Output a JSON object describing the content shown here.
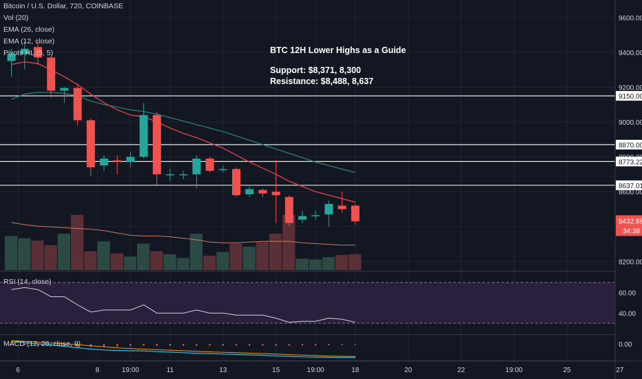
{
  "legend": {
    "symbol": "Bitcoin / U.S. Dollar, 720, COINBASE",
    "vol": "Vol (20)",
    "ema26": "EMA (26, close)",
    "ema12": "EMA (12, close)",
    "pivots": "Pivots HL (5, 5)",
    "rsi": "RSI (14, close)",
    "macd": "MACD (12, 26, close, 9)"
  },
  "annotation": {
    "title": "BTC 12H Lower Highs as a Guide",
    "support": "Support: $8,371, 8,300",
    "resistance": "Resistance: $8,488, 8,637"
  },
  "colors": {
    "bg": "#131722",
    "up": "#26a69a",
    "down": "#ef5350",
    "ema_fast": "#e0474c",
    "ema_slow": "#2e7d74",
    "rsi_fill": "#2a1f3d",
    "rsi_line": "#d1d4dc",
    "level_line": "#e6e6e6",
    "macd_line": "#26c6da",
    "signal_line": "#ff9800"
  },
  "chart_data": {
    "type": "candlestick",
    "price_axis": {
      "range": [
        8150,
        9700
      ],
      "ticks": [
        "9600.00",
        "9400.00",
        "9200.00",
        "9000.00",
        "8800.00",
        "8600.00",
        "8400.00",
        "8200.00"
      ],
      "tick_values": [
        9600,
        9400,
        9200,
        9000,
        8800,
        8600,
        8400,
        8200
      ]
    },
    "time_axis": {
      "labels": [
        "6",
        "8",
        "19:00",
        "11",
        "13",
        "15",
        "19:00",
        "18",
        "20",
        "22",
        "19:00",
        "25",
        "27"
      ],
      "label_index": [
        0.5,
        6.5,
        9,
        12,
        16,
        20,
        23,
        26,
        30,
        34,
        38,
        42,
        46
      ]
    },
    "candles": [
      {
        "o": 9350,
        "h": 9420,
        "l": 9260,
        "c": 9390
      },
      {
        "o": 9390,
        "h": 9460,
        "l": 9300,
        "c": 9420
      },
      {
        "o": 9430,
        "h": 9470,
        "l": 9330,
        "c": 9370
      },
      {
        "o": 9370,
        "h": 9380,
        "l": 9140,
        "c": 9180
      },
      {
        "o": 9180,
        "h": 9200,
        "l": 9110,
        "c": 9195
      },
      {
        "o": 9195,
        "h": 9210,
        "l": 8980,
        "c": 9010
      },
      {
        "o": 9010,
        "h": 9020,
        "l": 8690,
        "c": 8740
      },
      {
        "o": 8750,
        "h": 8810,
        "l": 8720,
        "c": 8790
      },
      {
        "o": 8780,
        "h": 8810,
        "l": 8700,
        "c": 8770
      },
      {
        "o": 8770,
        "h": 8830,
        "l": 8740,
        "c": 8800
      },
      {
        "o": 8800,
        "h": 9110,
        "l": 8790,
        "c": 9040
      },
      {
        "o": 9040,
        "h": 9060,
        "l": 8640,
        "c": 8700
      },
      {
        "o": 8700,
        "h": 8730,
        "l": 8660,
        "c": 8700
      },
      {
        "o": 8700,
        "h": 8720,
        "l": 8670,
        "c": 8700
      },
      {
        "o": 8700,
        "h": 8810,
        "l": 8620,
        "c": 8790
      },
      {
        "o": 8790,
        "h": 8800,
        "l": 8710,
        "c": 8720
      },
      {
        "o": 8730,
        "h": 8750,
        "l": 8710,
        "c": 8730
      },
      {
        "o": 8730,
        "h": 8740,
        "l": 8570,
        "c": 8580
      },
      {
        "o": 8585,
        "h": 8630,
        "l": 8570,
        "c": 8615
      },
      {
        "o": 8610,
        "h": 8620,
        "l": 8570,
        "c": 8590
      },
      {
        "o": 8600,
        "h": 8780,
        "l": 8420,
        "c": 8580
      },
      {
        "o": 8570,
        "h": 8580,
        "l": 8400,
        "c": 8420
      },
      {
        "o": 8440,
        "h": 8490,
        "l": 8420,
        "c": 8460
      },
      {
        "o": 8460,
        "h": 8490,
        "l": 8440,
        "c": 8465
      },
      {
        "o": 8470,
        "h": 8550,
        "l": 8400,
        "c": 8530
      },
      {
        "o": 8520,
        "h": 8600,
        "l": 8480,
        "c": 8500
      },
      {
        "o": 8520,
        "h": 8530,
        "l": 8410,
        "c": 8430
      }
    ],
    "ema12": [
      9330,
      9345,
      9335,
      9300,
      9260,
      9215,
      9160,
      9110,
      9070,
      9040,
      9030,
      9000,
      8965,
      8935,
      8910,
      8880,
      8850,
      8810,
      8770,
      8735,
      8700,
      8660,
      8630,
      8600,
      8580,
      8560,
      8540
    ],
    "ema26": [
      9130,
      9160,
      9170,
      9170,
      9165,
      9150,
      9120,
      9100,
      9085,
      9070,
      9060,
      9045,
      9025,
      9005,
      8985,
      8965,
      8945,
      8920,
      8895,
      8870,
      8845,
      8820,
      8795,
      8770,
      8750,
      8730,
      8710
    ],
    "volume": [
      0.45,
      0.42,
      0.39,
      0.33,
      0.48,
      0.73,
      0.25,
      0.38,
      0.22,
      0.18,
      0.35,
      0.25,
      0.21,
      0.16,
      0.48,
      0.19,
      0.24,
      0.35,
      0.31,
      0.37,
      0.48,
      0.73,
      0.15,
      0.14,
      0.17,
      0.2,
      0.21
    ],
    "volume_ma": [
      0.63,
      0.6,
      0.58,
      0.57,
      0.56,
      0.55,
      0.54,
      0.52,
      0.49,
      0.46,
      0.45,
      0.45,
      0.44,
      0.42,
      0.4,
      0.37,
      0.36,
      0.36,
      0.37,
      0.38,
      0.38,
      0.38,
      0.36,
      0.35,
      0.34,
      0.33,
      0.33
    ],
    "level_lines": [
      {
        "price": 9150,
        "label": "9150.00"
      },
      {
        "price": 8870,
        "label": "8870.00"
      },
      {
        "price": 8773.22,
        "label": "8773.22"
      },
      {
        "price": 8637.01,
        "label": "8637.01"
      }
    ],
    "last_price": {
      "price": 8432.88,
      "label": "8432.88",
      "countdown": "34:38"
    },
    "rsi": {
      "range": [
        20,
        80
      ],
      "ticks": [
        "60.00",
        "40.00"
      ],
      "tick_values": [
        60,
        40
      ],
      "values": [
        63,
        65,
        63,
        56,
        56,
        48,
        41,
        43,
        43,
        43,
        48,
        40,
        40,
        40,
        43,
        40,
        40,
        38,
        38,
        38,
        35,
        31,
        32,
        32,
        35,
        34,
        31
      ]
    },
    "macd": {
      "ticks": [
        "0.00"
      ],
      "tick_values": [
        0
      ],
      "range": [
        -300,
        150
      ],
      "macd": [
        40,
        20,
        0,
        -20,
        -45,
        -70,
        -95,
        -110,
        -120,
        -125,
        -128,
        -140,
        -150,
        -160,
        -170,
        -178,
        -185,
        -192,
        -200,
        -208,
        -218,
        -228,
        -235,
        -240,
        -244,
        -246,
        -248
      ],
      "signal": [
        60,
        45,
        30,
        15,
        0,
        -15,
        -35,
        -55,
        -72,
        -85,
        -95,
        -105,
        -115,
        -125,
        -135,
        -145,
        -153,
        -160,
        -168,
        -176,
        -185,
        -195,
        -205,
        -213,
        -220,
        -226,
        -230
      ]
    }
  }
}
